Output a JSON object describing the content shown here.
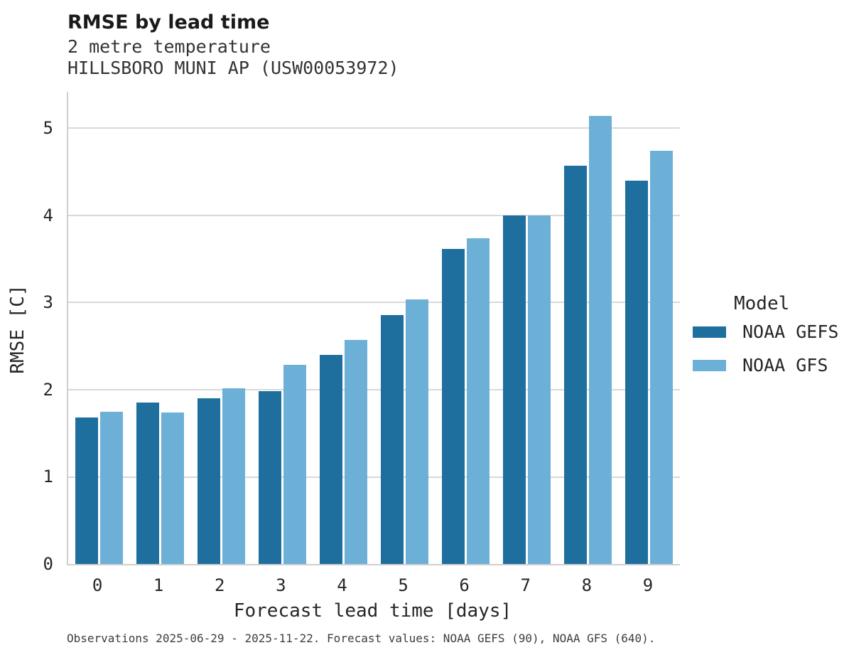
{
  "header": {
    "title": "RMSE by lead time",
    "subtitle_line1": "2 metre temperature",
    "subtitle_line2": "HILLSBORO MUNI AP (USW00053972)"
  },
  "chart_data": {
    "type": "bar",
    "title": "RMSE by lead time",
    "subtitle": [
      "2 metre temperature",
      "HILLSBORO MUNI AP (USW00053972)"
    ],
    "xlabel": "Forecast lead time [days]",
    "ylabel": "RMSE [C]",
    "categories": [
      "0",
      "1",
      "2",
      "3",
      "4",
      "5",
      "6",
      "7",
      "8",
      "9"
    ],
    "series": [
      {
        "name": "NOAA GEFS",
        "color": "#1f6f9e",
        "values": [
          1.68,
          1.85,
          1.9,
          1.98,
          2.4,
          2.86,
          3.62,
          4.0,
          4.57,
          4.4
        ]
      },
      {
        "name": "NOAA GFS",
        "color": "#6cb0d8",
        "values": [
          1.75,
          1.74,
          2.02,
          2.29,
          2.57,
          3.04,
          3.74,
          4.0,
          5.14,
          4.74
        ]
      }
    ],
    "ylim": [
      0,
      5.42
    ],
    "yticks": [
      0,
      1,
      2,
      3,
      4,
      5
    ],
    "grid": "horizontal",
    "legend_title": "Model",
    "legend_position": "right"
  },
  "legend": {
    "title": "Model",
    "items": [
      {
        "label": "NOAA GEFS",
        "color": "#1f6f9e"
      },
      {
        "label": "NOAA GFS",
        "color": "#6cb0d8"
      }
    ]
  },
  "footer": {
    "note": "Observations 2025-06-29 - 2025-11-22. Forecast values: NOAA GEFS (90), NOAA GFS (640)."
  },
  "colors": {
    "gefs_bar": "#1f6f9e",
    "gfs_bar": "#6cb0d8",
    "gridline": "#d9d9d9",
    "spine": "#cfcfcf",
    "title_text": "#1a1a1a",
    "body_text": "#262626"
  }
}
